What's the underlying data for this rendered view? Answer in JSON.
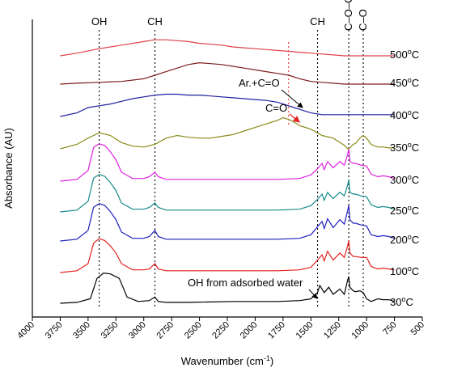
{
  "chart_data": {
    "type": "line",
    "title": "",
    "xlabel": "Wavenumber (cm",
    "xlabel_sup": "-1",
    "xlabel_end": ")",
    "ylabel": "Absorbance (AU)",
    "xlim": [
      4000,
      500
    ],
    "x_reversed": true,
    "xticks": [
      4000,
      3750,
      3500,
      3250,
      3000,
      2750,
      2500,
      2250,
      2000,
      1750,
      1500,
      1250,
      1000,
      750,
      500
    ],
    "y_tick_labels": false,
    "grid": false,
    "band_lines": [
      {
        "label": "OH",
        "x": 3400
      },
      {
        "label": "CH",
        "x": 2900
      },
      {
        "label": "CH",
        "x": 1440
      },
      {
        "label": "C–O–C",
        "x": 1160
      },
      {
        "label": "C–O",
        "x": 1030
      }
    ],
    "red_marker_x": 1700,
    "annotations": [
      {
        "text": "Ar.+C=O",
        "color": "#000000",
        "x": 1590
      },
      {
        "text": "C=O",
        "color": "#d62728",
        "x": 1690
      },
      {
        "text": "OH from adsorbed water",
        "color": "#000000",
        "x": 1570
      }
    ],
    "series": [
      {
        "name": "30°C",
        "label_base": "30",
        "color": "#000000",
        "x": [
          3750,
          3600,
          3480,
          3420,
          3360,
          3300,
          3220,
          3150,
          3050,
          2950,
          2900,
          2870,
          2800,
          2600,
          2200,
          1800,
          1600,
          1500,
          1440,
          1420,
          1380,
          1340,
          1300,
          1240,
          1200,
          1170,
          1160,
          1150,
          1120,
          1100,
          1060,
          1030,
          1000,
          960,
          900,
          850,
          800,
          750
        ],
        "y": [
          0.0,
          0.01,
          0.05,
          0.28,
          0.34,
          0.33,
          0.28,
          0.07,
          0.02,
          0.03,
          0.07,
          0.02,
          0.01,
          0.01,
          0.02,
          0.02,
          0.03,
          0.05,
          0.12,
          0.2,
          0.12,
          0.18,
          0.1,
          0.16,
          0.1,
          0.26,
          0.3,
          0.18,
          0.14,
          0.13,
          0.14,
          0.12,
          0.05,
          0.02,
          0.05,
          0.04,
          0.04,
          0.02
        ]
      },
      {
        "name": "100°C",
        "label_base": "100",
        "color": "#e3211f",
        "x": [
          3750,
          3600,
          3500,
          3450,
          3400,
          3350,
          3300,
          3250,
          3200,
          3100,
          3000,
          2950,
          2900,
          2870,
          2800,
          2600,
          2200,
          1800,
          1600,
          1500,
          1440,
          1400,
          1380,
          1350,
          1300,
          1240,
          1200,
          1170,
          1160,
          1150,
          1120,
          1100,
          1050,
          1000,
          960,
          900,
          850,
          800,
          750
        ],
        "y": [
          0.0,
          0.02,
          0.1,
          0.33,
          0.38,
          0.36,
          0.3,
          0.22,
          0.1,
          0.03,
          0.03,
          0.04,
          0.1,
          0.04,
          0.02,
          0.02,
          0.02,
          0.02,
          0.03,
          0.06,
          0.14,
          0.2,
          0.13,
          0.24,
          0.14,
          0.22,
          0.17,
          0.3,
          0.36,
          0.22,
          0.18,
          0.18,
          0.17,
          0.17,
          0.07,
          0.04,
          0.05,
          0.04,
          0.03
        ]
      },
      {
        "name": "200°C",
        "label_base": "200",
        "color": "#1f1fbf",
        "x": [
          3750,
          3600,
          3500,
          3450,
          3400,
          3350,
          3300,
          3250,
          3200,
          3100,
          3000,
          2950,
          2900,
          2870,
          2800,
          2600,
          2200,
          1800,
          1600,
          1500,
          1440,
          1400,
          1380,
          1350,
          1300,
          1240,
          1200,
          1170,
          1160,
          1150,
          1120,
          1100,
          1050,
          1000,
          960,
          900,
          850,
          800,
          750
        ],
        "y": [
          0.0,
          0.02,
          0.12,
          0.38,
          0.42,
          0.4,
          0.33,
          0.24,
          0.1,
          0.03,
          0.03,
          0.05,
          0.12,
          0.05,
          0.02,
          0.02,
          0.02,
          0.02,
          0.03,
          0.07,
          0.16,
          0.22,
          0.14,
          0.25,
          0.15,
          0.24,
          0.19,
          0.34,
          0.4,
          0.24,
          0.2,
          0.2,
          0.18,
          0.17,
          0.07,
          0.05,
          0.06,
          0.05,
          0.03
        ]
      },
      {
        "name": "250°C",
        "label_base": "250",
        "color": "#168a8a",
        "x": [
          3750,
          3600,
          3500,
          3450,
          3400,
          3350,
          3300,
          3250,
          3200,
          3100,
          3000,
          2950,
          2900,
          2870,
          2800,
          2600,
          2200,
          1800,
          1600,
          1500,
          1440,
          1400,
          1380,
          1350,
          1300,
          1240,
          1200,
          1170,
          1160,
          1150,
          1120,
          1100,
          1050,
          1000,
          960,
          900,
          850,
          800,
          750
        ],
        "y": [
          0.0,
          0.02,
          0.12,
          0.38,
          0.42,
          0.4,
          0.33,
          0.24,
          0.1,
          0.03,
          0.03,
          0.05,
          0.1,
          0.05,
          0.02,
          0.02,
          0.02,
          0.02,
          0.03,
          0.07,
          0.14,
          0.2,
          0.13,
          0.22,
          0.15,
          0.22,
          0.18,
          0.3,
          0.36,
          0.22,
          0.2,
          0.2,
          0.18,
          0.17,
          0.08,
          0.05,
          0.06,
          0.05,
          0.03
        ]
      },
      {
        "name": "300°C",
        "label_base": "300",
        "color": "#e020e0",
        "x": [
          3750,
          3600,
          3500,
          3450,
          3400,
          3350,
          3300,
          3250,
          3200,
          3100,
          3000,
          2950,
          2900,
          2870,
          2800,
          2600,
          2200,
          1800,
          1600,
          1500,
          1440,
          1400,
          1380,
          1350,
          1300,
          1240,
          1200,
          1170,
          1160,
          1150,
          1120,
          1100,
          1050,
          1000,
          960,
          900,
          850,
          800,
          750
        ],
        "y": [
          0.0,
          0.02,
          0.12,
          0.38,
          0.42,
          0.4,
          0.33,
          0.24,
          0.1,
          0.03,
          0.03,
          0.05,
          0.1,
          0.05,
          0.02,
          0.02,
          0.02,
          0.02,
          0.03,
          0.07,
          0.14,
          0.2,
          0.13,
          0.22,
          0.15,
          0.22,
          0.18,
          0.3,
          0.36,
          0.22,
          0.2,
          0.2,
          0.18,
          0.17,
          0.08,
          0.05,
          0.06,
          0.05,
          0.03
        ]
      },
      {
        "name": "350°C",
        "label_base": "350",
        "color": "#8a8a1a",
        "x": [
          3750,
          3600,
          3500,
          3400,
          3300,
          3200,
          3100,
          3000,
          2900,
          2800,
          2700,
          2600,
          2500,
          2400,
          2300,
          2200,
          2100,
          2000,
          1900,
          1800,
          1750,
          1700,
          1650,
          1600,
          1500,
          1400,
          1300,
          1250,
          1200,
          1170,
          1150,
          1120,
          1100,
          1060,
          1030,
          1000,
          960,
          900,
          850,
          800,
          750
        ],
        "y": [
          0.0,
          0.05,
          0.12,
          0.18,
          0.15,
          0.07,
          0.03,
          0.02,
          0.05,
          0.12,
          0.15,
          0.13,
          0.12,
          0.12,
          0.14,
          0.16,
          0.2,
          0.24,
          0.28,
          0.32,
          0.35,
          0.33,
          0.3,
          0.26,
          0.22,
          0.15,
          0.12,
          0.08,
          0.04,
          0.0,
          0.01,
          0.05,
          0.06,
          0.12,
          0.15,
          0.12,
          0.05,
          0.02,
          0.02,
          0.01,
          0.01
        ]
      },
      {
        "name": "400°C",
        "label_base": "400",
        "color": "#1f1f9f",
        "x": [
          3750,
          3600,
          3500,
          3400,
          3300,
          3200,
          3100,
          3000,
          2900,
          2800,
          2700,
          2600,
          2500,
          2400,
          2300,
          2200,
          2100,
          2000,
          1900,
          1800,
          1750,
          1700,
          1650,
          1600,
          1550,
          1500,
          1450,
          1400,
          1300,
          1200,
          1100,
          1000,
          900,
          800,
          750
        ],
        "y": [
          0.0,
          0.04,
          0.1,
          0.12,
          0.14,
          0.17,
          0.2,
          0.22,
          0.24,
          0.25,
          0.25,
          0.24,
          0.24,
          0.23,
          0.22,
          0.21,
          0.2,
          0.19,
          0.18,
          0.16,
          0.14,
          0.12,
          0.1,
          0.08,
          0.06,
          0.04,
          0.03,
          0.02,
          0.02,
          0.02,
          0.02,
          0.02,
          0.02,
          0.02,
          0.02
        ]
      },
      {
        "name": "450°C",
        "label_base": "450",
        "color": "#7f1d1d",
        "x": [
          3750,
          3600,
          3400,
          3200,
          3000,
          2900,
          2800,
          2700,
          2600,
          2500,
          2400,
          2300,
          2200,
          2100,
          2000,
          1900,
          1800,
          1700,
          1600,
          1500,
          1400,
          1300,
          1200,
          1100,
          1000,
          900,
          800,
          750
        ],
        "y": [
          0.0,
          0.01,
          0.02,
          0.03,
          0.06,
          0.1,
          0.14,
          0.18,
          0.22,
          0.24,
          0.23,
          0.22,
          0.2,
          0.18,
          0.16,
          0.14,
          0.12,
          0.1,
          0.06,
          0.03,
          0.02,
          0.01,
          0.0,
          0.0,
          0.0,
          0.0,
          0.0,
          0.0
        ]
      },
      {
        "name": "500°C",
        "label_base": "500",
        "color": "#e0404a",
        "x": [
          3750,
          3600,
          3400,
          3200,
          3000,
          2900,
          2800,
          2700,
          2600,
          2500,
          2400,
          2300,
          2200,
          2100,
          2000,
          1900,
          1800,
          1700,
          1600,
          1500,
          1400,
          1300,
          1200,
          1100,
          1000,
          900,
          800,
          750
        ],
        "y": [
          0.0,
          0.03,
          0.08,
          0.12,
          0.16,
          0.18,
          0.18,
          0.17,
          0.16,
          0.14,
          0.13,
          0.12,
          0.1,
          0.09,
          0.08,
          0.07,
          0.06,
          0.05,
          0.04,
          0.03,
          0.02,
          0.01,
          0.0,
          0.0,
          0.0,
          0.0,
          0.0,
          0.0
        ]
      }
    ]
  }
}
